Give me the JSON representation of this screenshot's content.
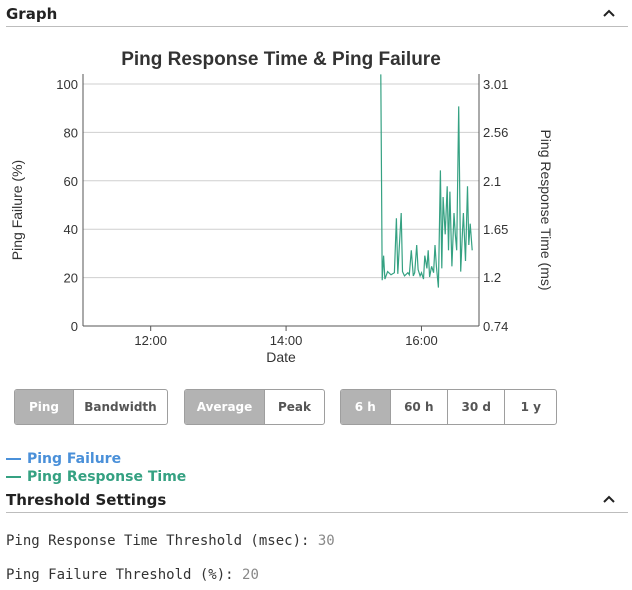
{
  "graph_section": {
    "title": "Graph"
  },
  "chart_data": {
    "type": "line",
    "title": "Ping Response Time & Ping Failure",
    "xlabel": "Date",
    "ylabel_left": "Ping Failure (%)",
    "ylabel_right": "Ping Response Time (ms)",
    "x_ticks": [
      "12:00",
      "14:00",
      "16:00"
    ],
    "x_tick_hours": [
      12,
      14,
      16
    ],
    "x_range_hours": [
      11,
      16.85
    ],
    "y_left_ticks": [
      "0",
      "20",
      "40",
      "60",
      "80",
      "100"
    ],
    "y_left_range": [
      0,
      100
    ],
    "y_right_ticks": [
      "0.74",
      "1.2",
      "1.65",
      "2.1",
      "2.56",
      "3.01"
    ],
    "y_right_range": [
      0.74,
      3.01
    ],
    "grid": true,
    "series": [
      {
        "name": "Ping Failure",
        "color": "#4a90d9",
        "x": [],
        "values": []
      },
      {
        "name": "Ping Response Time",
        "color": "#35a182",
        "x_hours": [
          15.4,
          15.42,
          15.44,
          15.46,
          15.5,
          15.55,
          15.6,
          15.63,
          15.65,
          15.7,
          15.72,
          15.75,
          15.8,
          15.82,
          15.85,
          15.88,
          15.9,
          15.93,
          15.95,
          15.98,
          16.0,
          16.03,
          16.05,
          16.08,
          16.1,
          16.12,
          16.15,
          16.18,
          16.2,
          16.22,
          16.25,
          16.28,
          16.3,
          16.32,
          16.35,
          16.38,
          16.4,
          16.42,
          16.45,
          16.48,
          16.5,
          16.52,
          16.55,
          16.58,
          16.6,
          16.62,
          16.65,
          16.68,
          16.7,
          16.72,
          16.75
        ],
        "values": [
          3.1,
          1.17,
          1.4,
          1.18,
          1.25,
          1.22,
          1.24,
          1.75,
          1.23,
          1.8,
          1.25,
          1.21,
          1.24,
          1.22,
          1.45,
          1.21,
          1.24,
          1.5,
          1.27,
          1.21,
          1.24,
          1.18,
          1.4,
          1.28,
          1.45,
          1.2,
          1.3,
          1.24,
          1.5,
          1.3,
          1.1,
          2.2,
          1.28,
          1.95,
          1.6,
          2.05,
          1.45,
          2.0,
          1.3,
          1.8,
          1.6,
          1.45,
          2.8,
          1.25,
          1.55,
          1.8,
          1.35,
          2.05,
          1.5,
          1.7,
          1.45
        ]
      }
    ]
  },
  "buttons": {
    "type_group": [
      {
        "label": "Ping",
        "active": true
      },
      {
        "label": "Bandwidth",
        "active": false
      }
    ],
    "agg_group": [
      {
        "label": "Average",
        "active": true
      },
      {
        "label": "Peak",
        "active": false
      }
    ],
    "range_group": [
      {
        "label": "6 h",
        "active": true
      },
      {
        "label": "60 h",
        "active": false
      },
      {
        "label": "30 d",
        "active": false
      },
      {
        "label": "1 y",
        "active": false
      }
    ]
  },
  "legend": [
    {
      "label": "Ping Failure",
      "color": "#4a90d9"
    },
    {
      "label": "Ping Response Time",
      "color": "#35a182"
    }
  ],
  "threshold_section": {
    "title": "Threshold Settings",
    "response_label": "Ping Response Time Threshold (msec):",
    "response_value": "30",
    "failure_label": "Ping Failure Threshold (%):",
    "failure_value": "20"
  },
  "icons": {
    "collapse_icon": "chevron-up-icon"
  }
}
